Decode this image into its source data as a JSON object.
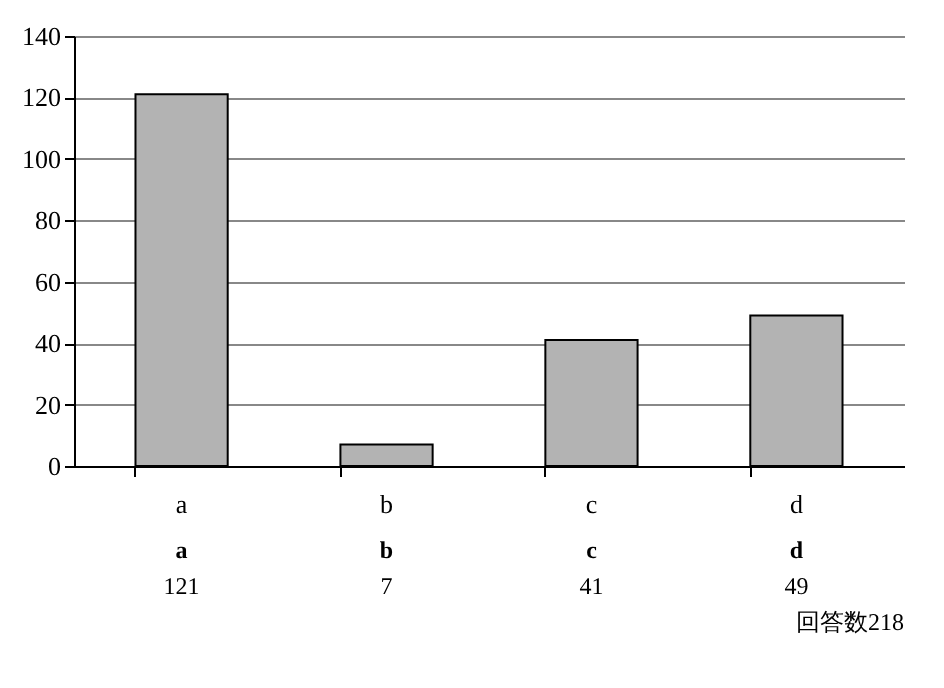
{
  "chart_data": {
    "type": "bar",
    "categories": [
      "a",
      "b",
      "c",
      "d"
    ],
    "values": [
      121,
      7,
      41,
      49
    ],
    "color": "#b3b3b3",
    "ylim": [
      0,
      140
    ],
    "yticks": [
      0,
      20,
      40,
      60,
      80,
      100,
      120,
      140
    ],
    "grid": "y",
    "data_labels": true,
    "annotations": [
      "回答数218"
    ]
  }
}
